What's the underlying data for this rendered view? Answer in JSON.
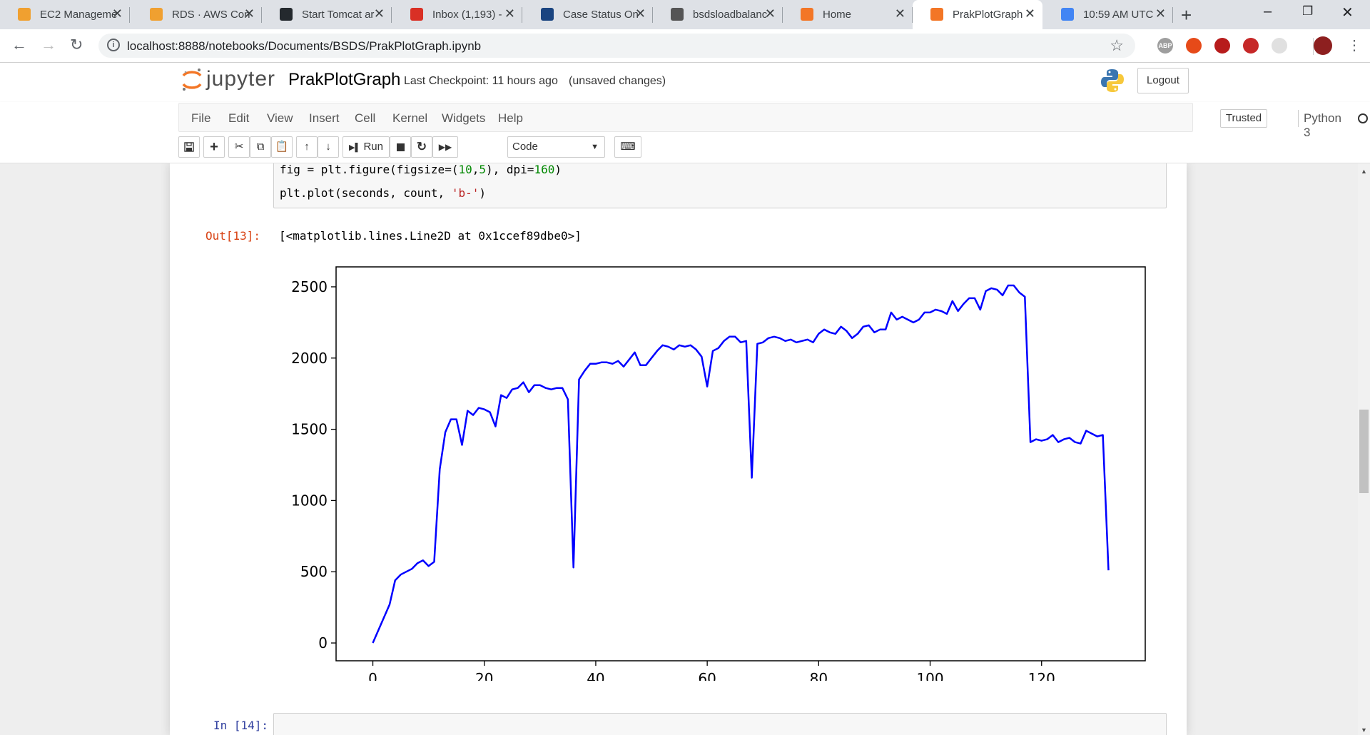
{
  "browser": {
    "tabs": [
      {
        "title": "EC2 Manageme",
        "icon": "aws-box-icon",
        "color": "#f0a030"
      },
      {
        "title": "RDS · AWS Con",
        "icon": "aws-box-icon",
        "color": "#f0a030"
      },
      {
        "title": "Start Tomcat ar",
        "icon": "github-icon",
        "color": "#24292e"
      },
      {
        "title": "Inbox (1,193) -",
        "icon": "gmail-icon",
        "color": "#d93025"
      },
      {
        "title": "Case Status On",
        "icon": "uscis-seal-icon",
        "color": "#1a4480"
      },
      {
        "title": "bsdsloadbalanc",
        "icon": "image-icon",
        "color": "#555555"
      },
      {
        "title": "Home",
        "icon": "jupyter-icon",
        "color": "#f37626"
      },
      {
        "title": "PrakPlotGraph",
        "icon": "jupyter-notebook-icon",
        "color": "#f37626"
      },
      {
        "title": "10:59 AM UTC",
        "icon": "google-icon",
        "color": "#4285f4"
      }
    ],
    "active_tab": 7,
    "close_glyph": "✕",
    "url": "localhost:8888/notebooks/Documents/BSDS/PrakPlotGraph.ipynb",
    "extensions": [
      {
        "name": "adblock-plus-icon",
        "label": "ABP",
        "color": "#9e9e9e"
      },
      {
        "name": "shield-extension-icon",
        "label": "",
        "color": "#e64a19"
      },
      {
        "name": "pdf-extension-icon",
        "label": "",
        "color": "#b71c1c"
      },
      {
        "name": "pocket-extension-icon",
        "label": "",
        "color": "#c62828"
      },
      {
        "name": "blank-extension-icon",
        "label": "",
        "color": "#e0e0e0"
      }
    ]
  },
  "jupyter": {
    "logo_text": "jupyter",
    "notebook_name": "PrakPlotGraph",
    "checkpoint": "Last Checkpoint: 11 hours ago",
    "unsaved": "(unsaved changes)",
    "logout_label": "Logout",
    "menu": [
      "File",
      "Edit",
      "View",
      "Insert",
      "Cell",
      "Kernel",
      "Widgets",
      "Help"
    ],
    "trusted_label": "Trusted",
    "kernel_name": "Python 3",
    "run_label": "Run",
    "cell_type": "Code"
  },
  "cell13": {
    "code_line1": {
      "pre": "fig = plt.figure(figsize=(",
      "n1": "10",
      "mid": ",",
      "n2": "5",
      "mid2": "), dpi=",
      "n3": "160",
      "post": ")"
    },
    "code_line2": {
      "pre": "plt.plot(seconds, count, ",
      "str": "'b-'",
      "post": ")"
    },
    "out_prompt": "Out[13]:",
    "out_text": "[<matplotlib.lines.Line2D at 0x1ccef89dbe0>]"
  },
  "next_prompt": "In [14]:",
  "chart_data": {
    "type": "line",
    "line_color": "#0000ff",
    "xlim": [
      -6.6,
      138.6
    ],
    "ylim": [
      -125,
      2640
    ],
    "xticks": [
      0,
      20,
      40,
      60,
      80,
      100,
      120
    ],
    "yticks": [
      0,
      500,
      1000,
      1500,
      2000,
      2500
    ],
    "grid": false,
    "series": [
      {
        "x": [
          0,
          3,
          4,
          5,
          6,
          7,
          8,
          9,
          10,
          11,
          12,
          13,
          14,
          15,
          16,
          17,
          18,
          19,
          20,
          21,
          22,
          23,
          24,
          25,
          26,
          27,
          28,
          29,
          30,
          31,
          32,
          33,
          34,
          35,
          36,
          37,
          38,
          39,
          40,
          41,
          42,
          43,
          44,
          45,
          46,
          47,
          48,
          49,
          50,
          51,
          52,
          53,
          54,
          55,
          56,
          57,
          58,
          59,
          60,
          61,
          62,
          63,
          64,
          65,
          66,
          67,
          68,
          69,
          70,
          71,
          72,
          73,
          74,
          75,
          76,
          77,
          78,
          79,
          80,
          81,
          82,
          83,
          84,
          85,
          86,
          87,
          88,
          89,
          90,
          91,
          92,
          93,
          94,
          95,
          96,
          97,
          98,
          99,
          100,
          101,
          102,
          103,
          104,
          105,
          106,
          107,
          108,
          109,
          110,
          111,
          112,
          113,
          114,
          115,
          116,
          117,
          118,
          119,
          120,
          121,
          122,
          123,
          124,
          125,
          126,
          127,
          128,
          129,
          130,
          131,
          132
        ],
        "y": [
          0,
          270,
          440,
          480,
          500,
          520,
          560,
          580,
          540,
          570,
          1220,
          1480,
          1570,
          1570,
          1390,
          1630,
          1600,
          1650,
          1640,
          1620,
          1520,
          1740,
          1720,
          1780,
          1790,
          1830,
          1760,
          1810,
          1810,
          1790,
          1780,
          1790,
          1790,
          1710,
          530,
          1850,
          1910,
          1960,
          1960,
          1970,
          1970,
          1960,
          1980,
          1940,
          1990,
          2040,
          1950,
          1950,
          2000,
          2050,
          2090,
          2080,
          2060,
          2090,
          2080,
          2090,
          2060,
          2010,
          1800,
          2050,
          2070,
          2120,
          2150,
          2150,
          2110,
          2120,
          1160,
          2100,
          2110,
          2140,
          2150,
          2140,
          2120,
          2130,
          2110,
          2120,
          2130,
          2110,
          2170,
          2200,
          2180,
          2170,
          2220,
          2190,
          2140,
          2170,
          2220,
          2230,
          2180,
          2200,
          2200,
          2320,
          2270,
          2290,
          2270,
          2250,
          2270,
          2320,
          2320,
          2340,
          2330,
          2310,
          2400,
          2330,
          2380,
          2420,
          2420,
          2340,
          2470,
          2490,
          2480,
          2440,
          2510,
          2510,
          2460,
          2430,
          1410,
          1430,
          1420,
          1430,
          1460,
          1410,
          1430,
          1440,
          1410,
          1400,
          1490,
          1470,
          1450,
          1460,
          510
        ]
      }
    ]
  }
}
